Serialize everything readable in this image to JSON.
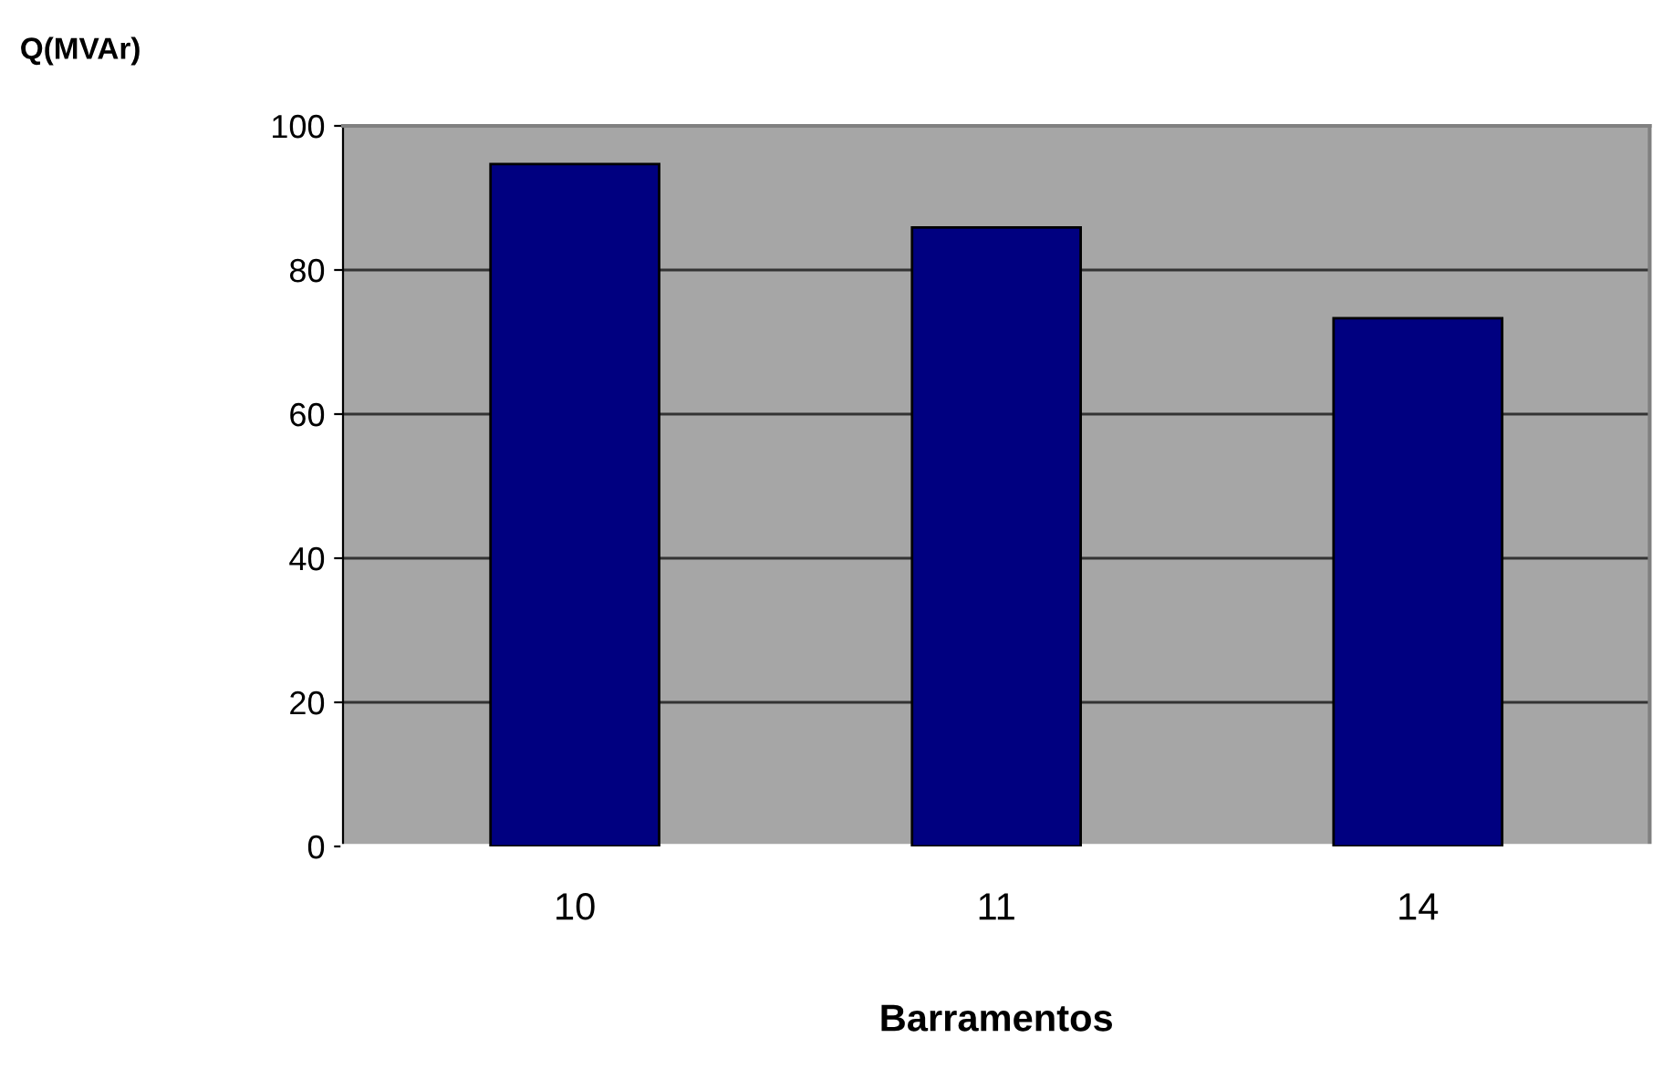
{
  "chart_data": {
    "type": "bar",
    "ylabel": "Q(MVAr)",
    "xlabel": "Barramentos",
    "categories": [
      "10",
      "11",
      "14"
    ],
    "values": [
      94.7,
      85.9,
      73.3
    ],
    "color": "#000080",
    "ylim": [
      0,
      100
    ],
    "yticks": [
      0,
      20,
      40,
      60,
      80,
      100
    ],
    "grid": "y",
    "legend": false
  }
}
